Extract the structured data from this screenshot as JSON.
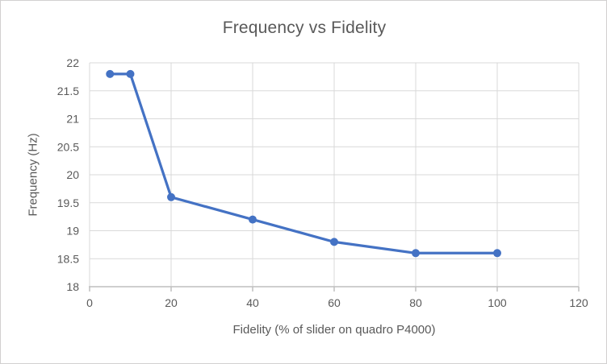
{
  "chart_data": {
    "type": "line",
    "title": "Frequency vs Fidelity",
    "xlabel": "Fidelity (% of slider on quadro P4000)",
    "ylabel": "Frequency (Hz)",
    "series": [
      {
        "name": "Frequency",
        "x": [
          5,
          10,
          20,
          40,
          60,
          80,
          100
        ],
        "y": [
          21.8,
          21.8,
          19.6,
          19.2,
          18.8,
          18.6,
          18.6
        ]
      }
    ],
    "xlim": [
      0,
      120
    ],
    "ylim": [
      18,
      22
    ],
    "x_ticks": [
      0,
      20,
      40,
      60,
      80,
      100,
      120
    ],
    "y_ticks": [
      18,
      18.5,
      19,
      19.5,
      20,
      20.5,
      21,
      21.5,
      22
    ],
    "grid": true,
    "legend_position": "none",
    "marker": "circle",
    "colors": {
      "series": "#4472C4",
      "gridline": "#D9D9D9",
      "axis_line": "#BFBFBF",
      "text": "#595959",
      "background": "#FFFFFF",
      "frame_border": "#D2D0D0"
    }
  }
}
